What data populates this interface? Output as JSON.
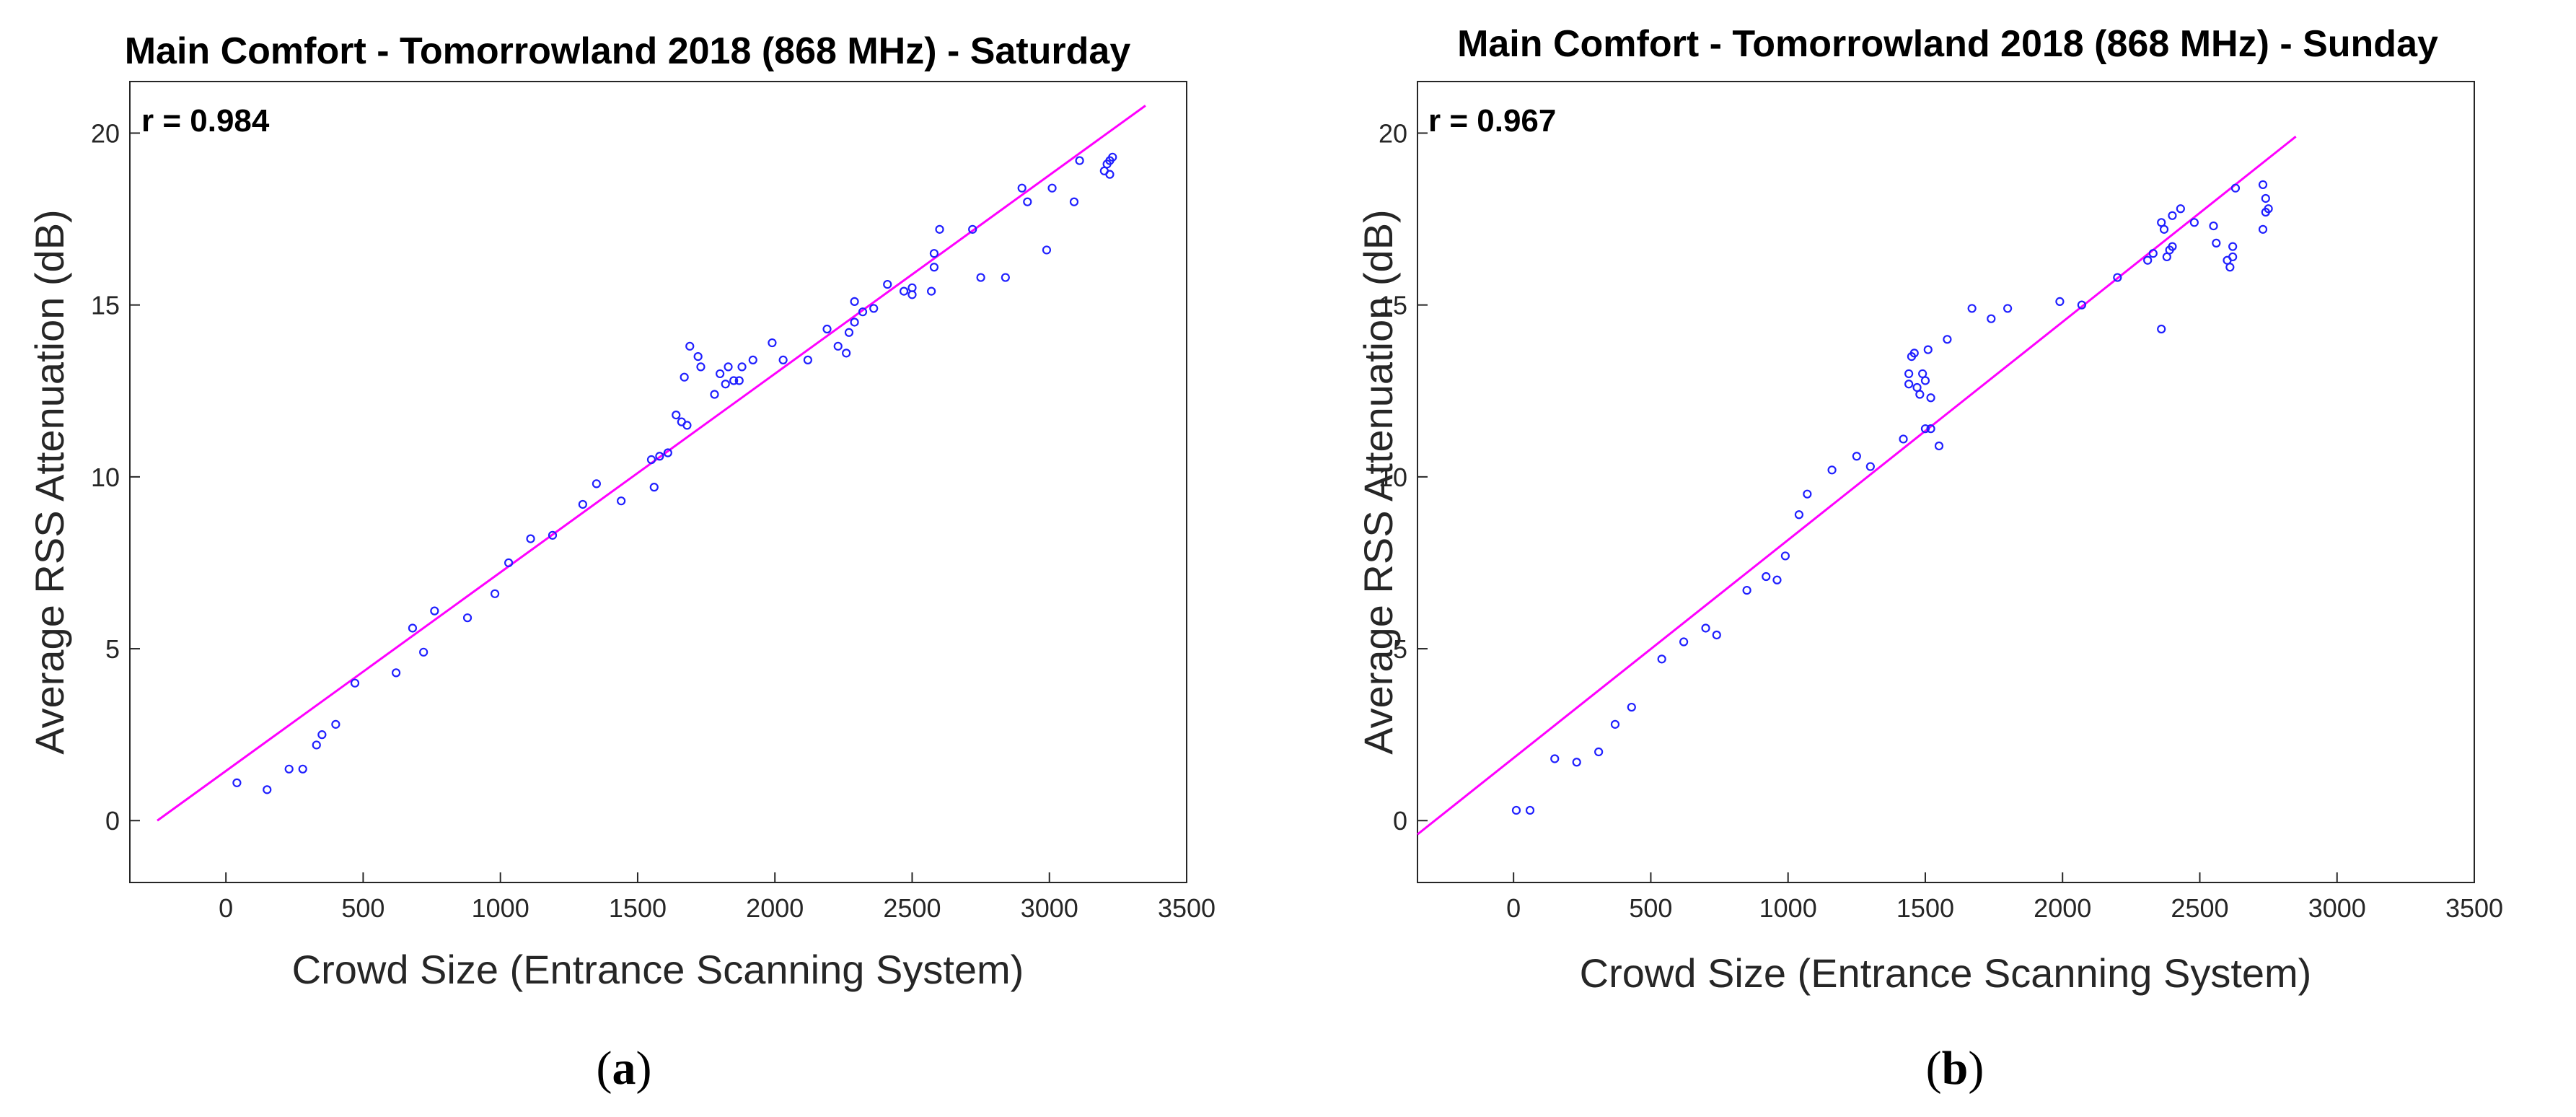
{
  "colors": {
    "points": "#1f1fff",
    "fit_line": "#ff00ff",
    "axes": "#262626"
  },
  "chart_data": [
    {
      "type": "scatter",
      "title": "Main Comfort - Tomorrowland 2018 (868 MHz) - Saturday",
      "xlabel": "Crowd Size (Entrance Scanning System)",
      "ylabel": "Average RSS Attenuation (dB)",
      "xlim": [
        -350,
        3500
      ],
      "ylim": [
        -1.8,
        21.5
      ],
      "xticks": [
        0,
        500,
        1000,
        1500,
        2000,
        2500,
        3000,
        3500
      ],
      "yticks": [
        0,
        5,
        10,
        15,
        20
      ],
      "annotation": "r = 0.984",
      "caption": "(a)",
      "caption_letter": "a",
      "fit_line": {
        "x": [
          -250,
          3350
        ],
        "y": [
          0,
          20.8
        ]
      },
      "points": [
        [
          40,
          1.1
        ],
        [
          150,
          0.9
        ],
        [
          230,
          1.5
        ],
        [
          280,
          1.5
        ],
        [
          330,
          2.2
        ],
        [
          350,
          2.5
        ],
        [
          400,
          2.8
        ],
        [
          470,
          4.0
        ],
        [
          620,
          4.3
        ],
        [
          680,
          5.6
        ],
        [
          720,
          4.9
        ],
        [
          760,
          6.1
        ],
        [
          880,
          5.9
        ],
        [
          980,
          6.6
        ],
        [
          1030,
          7.5
        ],
        [
          1110,
          8.2
        ],
        [
          1190,
          8.3
        ],
        [
          1300,
          9.2
        ],
        [
          1350,
          9.8
        ],
        [
          1440,
          9.3
        ],
        [
          1550,
          10.5
        ],
        [
          1560,
          9.7
        ],
        [
          1580,
          10.6
        ],
        [
          1610,
          10.7
        ],
        [
          1640,
          11.8
        ],
        [
          1660,
          11.6
        ],
        [
          1680,
          11.5
        ],
        [
          1670,
          12.9
        ],
        [
          1690,
          13.8
        ],
        [
          1720,
          13.5
        ],
        [
          1730,
          13.2
        ],
        [
          1780,
          12.4
        ],
        [
          1800,
          13.0
        ],
        [
          1820,
          12.7
        ],
        [
          1830,
          13.2
        ],
        [
          1850,
          12.8
        ],
        [
          1870,
          12.8
        ],
        [
          1880,
          13.2
        ],
        [
          1920,
          13.4
        ],
        [
          1990,
          13.9
        ],
        [
          2030,
          13.4
        ],
        [
          2120,
          13.4
        ],
        [
          2190,
          14.3
        ],
        [
          2230,
          13.8
        ],
        [
          2260,
          13.6
        ],
        [
          2270,
          14.2
        ],
        [
          2290,
          14.5
        ],
        [
          2290,
          15.1
        ],
        [
          2320,
          14.8
        ],
        [
          2360,
          14.9
        ],
        [
          2410,
          15.6
        ],
        [
          2470,
          15.4
        ],
        [
          2500,
          15.3
        ],
        [
          2500,
          15.5
        ],
        [
          2570,
          15.4
        ],
        [
          2580,
          16.5
        ],
        [
          2580,
          16.1
        ],
        [
          2600,
          17.2
        ],
        [
          2720,
          17.2
        ],
        [
          2750,
          15.8
        ],
        [
          2840,
          15.8
        ],
        [
          2900,
          18.4
        ],
        [
          2920,
          18.0
        ],
        [
          2990,
          16.6
        ],
        [
          3010,
          18.4
        ],
        [
          3090,
          18.0
        ],
        [
          3110,
          19.2
        ],
        [
          3200,
          18.9
        ],
        [
          3220,
          19.2
        ],
        [
          3220,
          18.8
        ],
        [
          3230,
          19.3
        ],
        [
          3210,
          19.1
        ]
      ]
    },
    {
      "type": "scatter",
      "title": "Main Comfort - Tomorrowland 2018 (868 MHz) - Sunday",
      "xlabel": "Crowd Size (Entrance Scanning System)",
      "ylabel": "Average RSS Attenuation (dB)",
      "xlim": [
        -350,
        3500
      ],
      "ylim": [
        -1.8,
        21.5
      ],
      "xticks": [
        0,
        500,
        1000,
        1500,
        2000,
        2500,
        3000,
        3500
      ],
      "yticks": [
        0,
        5,
        10,
        15,
        20
      ],
      "annotation": "r = 0.967",
      "caption": "(b)",
      "caption_letter": "b",
      "fit_line": {
        "x": [
          -350,
          2850
        ],
        "y": [
          -0.4,
          19.9
        ]
      },
      "points": [
        [
          10,
          0.3
        ],
        [
          60,
          0.3
        ],
        [
          150,
          1.8
        ],
        [
          230,
          1.7
        ],
        [
          310,
          2.0
        ],
        [
          370,
          2.8
        ],
        [
          430,
          3.3
        ],
        [
          540,
          4.7
        ],
        [
          620,
          5.2
        ],
        [
          700,
          5.6
        ],
        [
          740,
          5.4
        ],
        [
          850,
          6.7
        ],
        [
          920,
          7.1
        ],
        [
          960,
          7.0
        ],
        [
          990,
          7.7
        ],
        [
          1040,
          8.9
        ],
        [
          1070,
          9.5
        ],
        [
          1160,
          10.2
        ],
        [
          1250,
          10.6
        ],
        [
          1300,
          10.3
        ],
        [
          1420,
          11.1
        ],
        [
          1440,
          12.7
        ],
        [
          1450,
          13.5
        ],
        [
          1440,
          13.0
        ],
        [
          1460,
          13.6
        ],
        [
          1470,
          12.6
        ],
        [
          1480,
          12.4
        ],
        [
          1490,
          13.0
        ],
        [
          1500,
          11.4
        ],
        [
          1500,
          12.8
        ],
        [
          1510,
          13.7
        ],
        [
          1520,
          11.4
        ],
        [
          1520,
          12.3
        ],
        [
          1550,
          10.9
        ],
        [
          1580,
          14.0
        ],
        [
          1670,
          14.9
        ],
        [
          1740,
          14.6
        ],
        [
          1800,
          14.9
        ],
        [
          1990,
          15.1
        ],
        [
          2070,
          15.0
        ],
        [
          2200,
          15.8
        ],
        [
          2310,
          16.3
        ],
        [
          2330,
          16.5
        ],
        [
          2360,
          14.3
        ],
        [
          2360,
          17.4
        ],
        [
          2370,
          17.2
        ],
        [
          2380,
          16.4
        ],
        [
          2390,
          16.6
        ],
        [
          2400,
          17.6
        ],
        [
          2400,
          16.7
        ],
        [
          2430,
          17.8
        ],
        [
          2480,
          17.4
        ],
        [
          2550,
          17.3
        ],
        [
          2560,
          16.8
        ],
        [
          2600,
          16.3
        ],
        [
          2610,
          16.1
        ],
        [
          2620,
          16.7
        ],
        [
          2620,
          16.4
        ],
        [
          2630,
          18.4
        ],
        [
          2730,
          17.2
        ],
        [
          2730,
          18.5
        ],
        [
          2740,
          18.1
        ],
        [
          2750,
          17.8
        ],
        [
          2740,
          17.7
        ]
      ]
    }
  ]
}
